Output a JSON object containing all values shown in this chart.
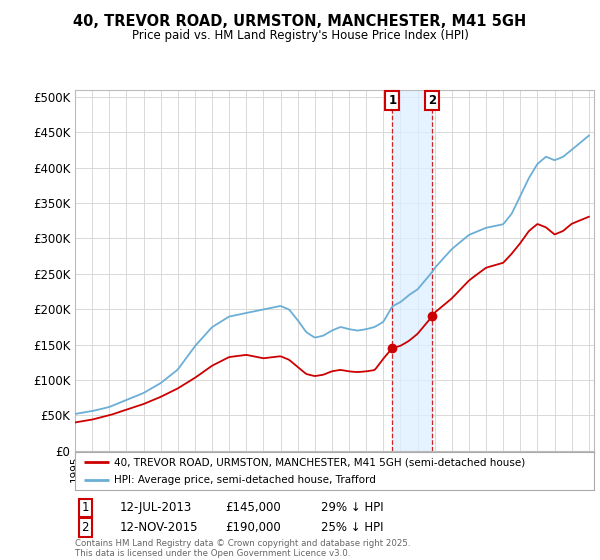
{
  "title": "40, TREVOR ROAD, URMSTON, MANCHESTER, M41 5GH",
  "subtitle": "Price paid vs. HM Land Registry's House Price Index (HPI)",
  "ylabel_ticks": [
    "£0",
    "£50K",
    "£100K",
    "£150K",
    "£200K",
    "£250K",
    "£300K",
    "£350K",
    "£400K",
    "£450K",
    "£500K"
  ],
  "ytick_values": [
    0,
    50000,
    100000,
    150000,
    200000,
    250000,
    300000,
    350000,
    400000,
    450000,
    500000
  ],
  "ylim": [
    0,
    510000
  ],
  "x_start_year": 1995,
  "x_end_year": 2025,
  "hpi_color": "#6baed6",
  "price_color": "#cc0000",
  "sale1_date": "12-JUL-2013",
  "sale1_price": 145000,
  "sale1_label": "29% ↓ HPI",
  "sale2_date": "12-NOV-2015",
  "sale2_price": 190000,
  "sale2_label": "25% ↓ HPI",
  "sale1_x": 2013.53,
  "sale2_x": 2015.87,
  "legend_line1": "40, TREVOR ROAD, URMSTON, MANCHESTER, M41 5GH (semi-detached house)",
  "legend_line2": "HPI: Average price, semi-detached house, Trafford",
  "footnote": "Contains HM Land Registry data © Crown copyright and database right 2025.\nThis data is licensed under the Open Government Licence v3.0.",
  "background_color": "#ffffff",
  "grid_color": "#d8d8d8",
  "highlight_fill": "#ddeeff",
  "hpi_waypoints": [
    [
      1995.0,
      52000
    ],
    [
      1996.0,
      56000
    ],
    [
      1997.0,
      62000
    ],
    [
      1998.0,
      72000
    ],
    [
      1999.0,
      82000
    ],
    [
      2000.0,
      96000
    ],
    [
      2001.0,
      115000
    ],
    [
      2002.0,
      148000
    ],
    [
      2003.0,
      175000
    ],
    [
      2004.0,
      190000
    ],
    [
      2005.0,
      195000
    ],
    [
      2006.0,
      200000
    ],
    [
      2007.0,
      205000
    ],
    [
      2007.5,
      200000
    ],
    [
      2008.0,
      185000
    ],
    [
      2008.5,
      168000
    ],
    [
      2009.0,
      160000
    ],
    [
      2009.5,
      163000
    ],
    [
      2010.0,
      170000
    ],
    [
      2010.5,
      175000
    ],
    [
      2011.0,
      172000
    ],
    [
      2011.5,
      170000
    ],
    [
      2012.0,
      172000
    ],
    [
      2012.5,
      175000
    ],
    [
      2013.0,
      182000
    ],
    [
      2013.53,
      204000
    ],
    [
      2014.0,
      210000
    ],
    [
      2014.5,
      220000
    ],
    [
      2015.0,
      228000
    ],
    [
      2015.87,
      253000
    ],
    [
      2016.0,
      258000
    ],
    [
      2017.0,
      285000
    ],
    [
      2018.0,
      305000
    ],
    [
      2019.0,
      315000
    ],
    [
      2020.0,
      320000
    ],
    [
      2020.5,
      335000
    ],
    [
      2021.0,
      360000
    ],
    [
      2021.5,
      385000
    ],
    [
      2022.0,
      405000
    ],
    [
      2022.5,
      415000
    ],
    [
      2023.0,
      410000
    ],
    [
      2023.5,
      415000
    ],
    [
      2024.0,
      425000
    ],
    [
      2024.5,
      435000
    ],
    [
      2025.0,
      445000
    ]
  ],
  "prop_waypoints": [
    [
      1995.0,
      40000
    ],
    [
      1996.0,
      44000
    ],
    [
      1997.0,
      50000
    ],
    [
      1998.0,
      58000
    ],
    [
      1999.0,
      66000
    ],
    [
      2000.0,
      76000
    ],
    [
      2001.0,
      88000
    ],
    [
      2002.0,
      103000
    ],
    [
      2003.0,
      120000
    ],
    [
      2004.0,
      132000
    ],
    [
      2005.0,
      135000
    ],
    [
      2006.0,
      130000
    ],
    [
      2007.0,
      133000
    ],
    [
      2007.5,
      128000
    ],
    [
      2008.0,
      118000
    ],
    [
      2008.5,
      108000
    ],
    [
      2009.0,
      105000
    ],
    [
      2009.5,
      107000
    ],
    [
      2010.0,
      112000
    ],
    [
      2010.5,
      114000
    ],
    [
      2011.0,
      112000
    ],
    [
      2011.5,
      111000
    ],
    [
      2012.0,
      112000
    ],
    [
      2012.5,
      114000
    ],
    [
      2013.0,
      130000
    ],
    [
      2013.53,
      145000
    ],
    [
      2014.0,
      148000
    ],
    [
      2014.5,
      155000
    ],
    [
      2015.0,
      165000
    ],
    [
      2015.87,
      190000
    ],
    [
      2016.0,
      195000
    ],
    [
      2017.0,
      215000
    ],
    [
      2018.0,
      240000
    ],
    [
      2019.0,
      258000
    ],
    [
      2020.0,
      265000
    ],
    [
      2020.5,
      278000
    ],
    [
      2021.0,
      293000
    ],
    [
      2021.5,
      310000
    ],
    [
      2022.0,
      320000
    ],
    [
      2022.5,
      315000
    ],
    [
      2023.0,
      305000
    ],
    [
      2023.5,
      310000
    ],
    [
      2024.0,
      320000
    ],
    [
      2024.5,
      325000
    ],
    [
      2025.0,
      330000
    ]
  ]
}
